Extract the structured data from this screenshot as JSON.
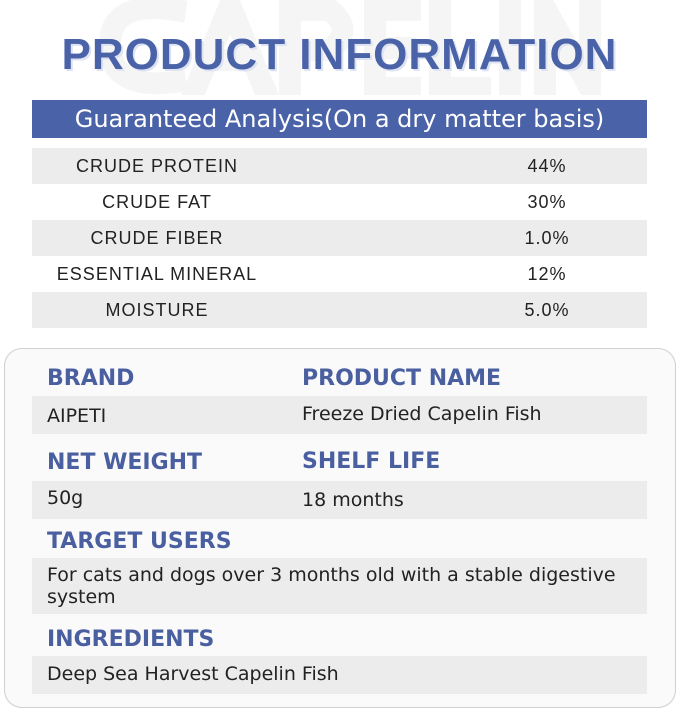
{
  "watermark": "CAPELIN",
  "title": "PRODUCT INFORMATION",
  "analysis": {
    "heading": "Guaranteed Analysis(On a dry matter basis)",
    "rows": [
      {
        "name": "CRUDE PROTEIN",
        "value": "44%"
      },
      {
        "name": "CRUDE FAT",
        "value": "30%"
      },
      {
        "name": "CRUDE FIBER",
        "value": "1.0%"
      },
      {
        "name": "ESSENTIAL MINERAL",
        "value": "12%"
      },
      {
        "name": "MOISTURE",
        "value": "5.0%"
      }
    ]
  },
  "details": {
    "brand": {
      "label": "BRAND",
      "value": "AIPETI"
    },
    "product_name": {
      "label": "PRODUCT NAME",
      "value": "Freeze Dried Capelin Fish"
    },
    "net_weight": {
      "label": "NET WEIGHT",
      "value": "50g"
    },
    "shelf_life": {
      "label": "SHELF LIFE",
      "value": "18 months"
    },
    "target_users": {
      "label": "TARGET USERS",
      "value": "For cats and dogs over 3 months old with a stable digestive system"
    },
    "ingredients": {
      "label": "INGREDIENTS",
      "value": "Deep Sea Harvest Capelin Fish"
    }
  },
  "colors": {
    "accent": "#4a62a8",
    "row_grey": "#ececec"
  }
}
